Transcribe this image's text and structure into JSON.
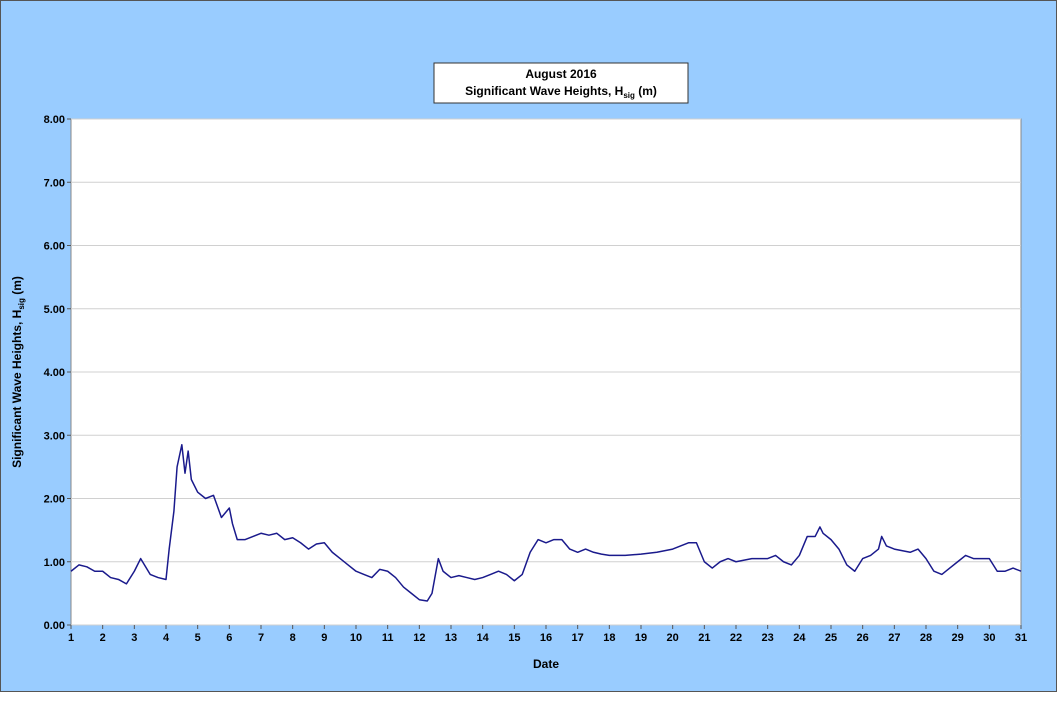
{
  "chart_data": {
    "type": "line",
    "title": "August 2016",
    "subtitle": {
      "text": "Significant Wave Heights, H",
      "subscript": "sig",
      "suffix": " (m)"
    },
    "x_label": "Date",
    "y_label": {
      "text": "Significant  Wave Heights,  H",
      "subscript": "sig",
      "suffix": " (m)"
    },
    "xlim": [
      1,
      31
    ],
    "xticks": [
      1,
      2,
      3,
      4,
      5,
      6,
      7,
      8,
      9,
      10,
      11,
      12,
      13,
      14,
      15,
      16,
      17,
      18,
      19,
      20,
      21,
      22,
      23,
      24,
      25,
      26,
      27,
      28,
      29,
      30,
      31
    ],
    "ylim": [
      0,
      8
    ],
    "yticks": [
      {
        "value": 0,
        "label": "0.00"
      },
      {
        "value": 1,
        "label": "1.00"
      },
      {
        "value": 2,
        "label": "2.00"
      },
      {
        "value": 3,
        "label": "3.00"
      },
      {
        "value": 4,
        "label": "4.00"
      },
      {
        "value": 5,
        "label": "5.00"
      },
      {
        "value": 6,
        "label": "6.00"
      },
      {
        "value": 7,
        "label": "7.00"
      },
      {
        "value": 8,
        "label": "8.00"
      }
    ],
    "grid": true,
    "series": [
      {
        "color": "#1a1a8c",
        "x": [
          1,
          1.25,
          1.5,
          1.75,
          2,
          2.25,
          2.5,
          2.75,
          3,
          3.2,
          3.5,
          3.75,
          4,
          4.1,
          4.25,
          4.35,
          4.5,
          4.6,
          4.7,
          4.8,
          5,
          5.25,
          5.5,
          5.75,
          6,
          6.1,
          6.25,
          6.5,
          6.75,
          7,
          7.25,
          7.5,
          7.75,
          8,
          8.25,
          8.5,
          8.75,
          9,
          9.25,
          9.5,
          9.75,
          10,
          10.25,
          10.5,
          10.75,
          11,
          11.25,
          11.5,
          11.75,
          12,
          12.25,
          12.4,
          12.6,
          12.75,
          13,
          13.25,
          13.5,
          13.75,
          14,
          14.25,
          14.5,
          14.75,
          15,
          15.25,
          15.5,
          15.75,
          16,
          16.25,
          16.5,
          16.75,
          17,
          17.25,
          17.5,
          17.75,
          18,
          18.5,
          19,
          19.5,
          20,
          20.25,
          20.5,
          20.75,
          21,
          21.25,
          21.5,
          21.75,
          22,
          22.5,
          23,
          23.25,
          23.5,
          23.75,
          24,
          24.25,
          24.5,
          24.65,
          24.75,
          25,
          25.25,
          25.5,
          25.75,
          26,
          26.25,
          26.5,
          26.6,
          26.75,
          27,
          27.5,
          27.75,
          28,
          28.25,
          28.5,
          28.75,
          29,
          29.25,
          29.5,
          29.75,
          30,
          30.25,
          30.5,
          30.75,
          31
        ],
        "values": [
          0.85,
          0.95,
          0.92,
          0.85,
          0.85,
          0.75,
          0.72,
          0.65,
          0.85,
          1.05,
          0.8,
          0.75,
          0.72,
          1.2,
          1.8,
          2.5,
          2.85,
          2.4,
          2.75,
          2.3,
          2.1,
          2.0,
          2.05,
          1.7,
          1.85,
          1.6,
          1.35,
          1.35,
          1.4,
          1.45,
          1.42,
          1.45,
          1.35,
          1.38,
          1.3,
          1.2,
          1.28,
          1.3,
          1.15,
          1.05,
          0.95,
          0.85,
          0.8,
          0.75,
          0.88,
          0.85,
          0.75,
          0.6,
          0.5,
          0.4,
          0.38,
          0.5,
          1.05,
          0.85,
          0.75,
          0.78,
          0.75,
          0.72,
          0.75,
          0.8,
          0.85,
          0.8,
          0.7,
          0.8,
          1.15,
          1.35,
          1.3,
          1.35,
          1.35,
          1.2,
          1.15,
          1.2,
          1.15,
          1.12,
          1.1,
          1.1,
          1.12,
          1.15,
          1.2,
          1.25,
          1.3,
          1.3,
          1.0,
          0.9,
          1.0,
          1.05,
          1.0,
          1.05,
          1.05,
          1.1,
          1.0,
          0.95,
          1.1,
          1.4,
          1.4,
          1.55,
          1.45,
          1.35,
          1.2,
          0.95,
          0.85,
          1.05,
          1.1,
          1.2,
          1.4,
          1.25,
          1.2,
          1.15,
          1.2,
          1.05,
          0.85,
          0.8,
          0.9,
          1.0,
          1.1,
          1.05,
          1.05,
          1.05,
          0.85,
          0.85,
          0.9,
          0.85
        ]
      }
    ]
  }
}
